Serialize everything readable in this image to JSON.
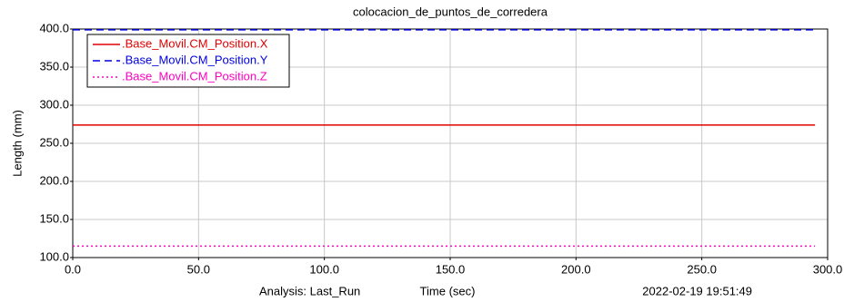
{
  "chart_data": {
    "type": "line",
    "title": "colocacion_de_puntos_de_corredera",
    "ylabel": "Length (mm)",
    "xlabel": "Time (sec)",
    "footer_left": "Analysis:  Last_Run",
    "footer_right": "2022-02-19 19:51:49",
    "x": [
      0,
      295
    ],
    "series": [
      {
        "name": ".Base_Movil.CM_Position.X",
        "color": "#e00000",
        "linestyle": "solid",
        "values": [
          274,
          274
        ]
      },
      {
        "name": ".Base_Movil.CM_Position.Y",
        "color": "#0000e0",
        "linestyle": "dashed",
        "values": [
          399,
          399
        ]
      },
      {
        "name": ".Base_Movil.CM_Position.Z",
        "color": "#ff00c0",
        "linestyle": "dotted",
        "values": [
          115,
          115
        ]
      }
    ],
    "xlim": [
      0,
      300
    ],
    "xticks": [
      {
        "value": 0,
        "label": "0.0"
      },
      {
        "value": 50,
        "label": "50.0"
      },
      {
        "value": 100,
        "label": "100.0"
      },
      {
        "value": 150,
        "label": "150.0"
      },
      {
        "value": 200,
        "label": "200.0"
      },
      {
        "value": 250,
        "label": "250.0"
      },
      {
        "value": 300,
        "label": "300.0"
      }
    ],
    "ylim": [
      100,
      400
    ],
    "yticks": [
      {
        "value": 100,
        "label": "100.0"
      },
      {
        "value": 150,
        "label": "150.0"
      },
      {
        "value": 200,
        "label": "200.0"
      },
      {
        "value": 250,
        "label": "250.0"
      },
      {
        "value": 300,
        "label": "300.0"
      },
      {
        "value": 350,
        "label": "350.0"
      },
      {
        "value": 400,
        "label": "400.0"
      }
    ],
    "grid": true,
    "legend": "upper-left"
  }
}
